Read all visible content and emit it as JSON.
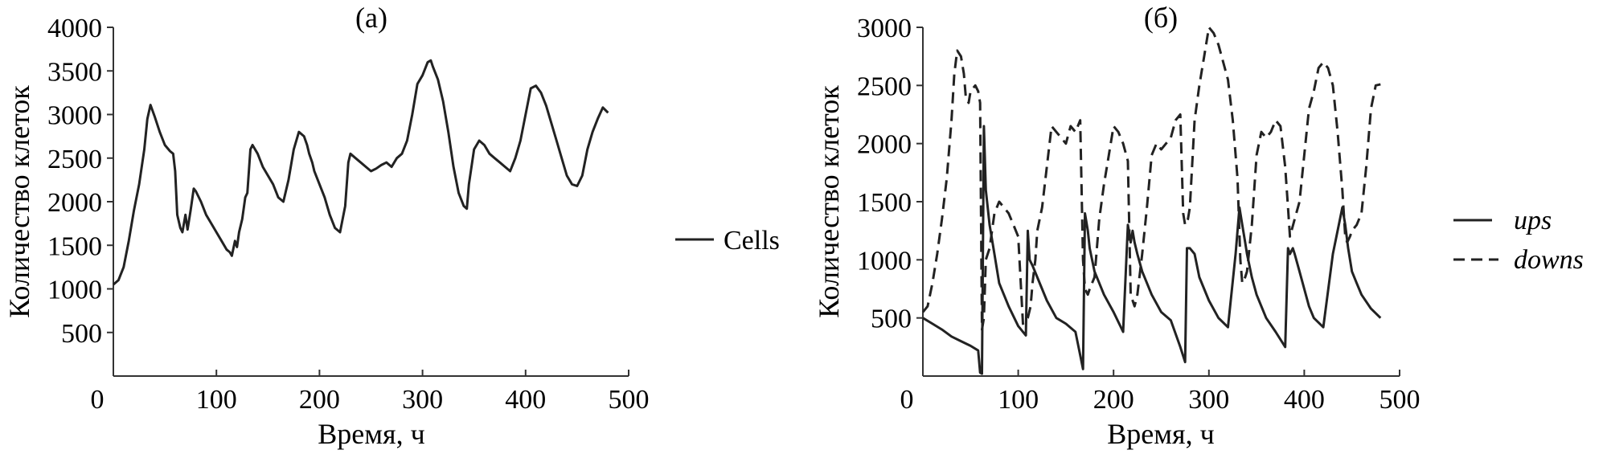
{
  "chart_data": [
    {
      "type": "line",
      "title": "(а)",
      "xlabel": "Время, ч",
      "ylabel": "Количество клеток",
      "xlim": [
        0,
        500
      ],
      "ylim": [
        0,
        4000
      ],
      "xticks": [
        "0",
        "100",
        "200",
        "300",
        "400",
        "500"
      ],
      "yticks": [
        "500",
        "1000",
        "1500",
        "2000",
        "2500",
        "3000",
        "3500",
        "4000"
      ],
      "legend_position": "right",
      "series": [
        {
          "name": "Cells",
          "style": "solid",
          "color": "#222222",
          "x": [
            0,
            5,
            10,
            15,
            20,
            25,
            30,
            33,
            36,
            40,
            45,
            50,
            55,
            58,
            60,
            62,
            65,
            67,
            70,
            72,
            75,
            78,
            80,
            85,
            90,
            95,
            100,
            105,
            110,
            113,
            115,
            118,
            120,
            122,
            125,
            128,
            130,
            133,
            135,
            140,
            145,
            150,
            155,
            160,
            165,
            170,
            175,
            180,
            185,
            188,
            190,
            193,
            195,
            200,
            205,
            210,
            215,
            220,
            225,
            228,
            230,
            235,
            240,
            245,
            250,
            255,
            260,
            265,
            270,
            275,
            280,
            285,
            290,
            295,
            300,
            305,
            308,
            310,
            315,
            320,
            325,
            330,
            335,
            340,
            343,
            345,
            350,
            355,
            360,
            365,
            370,
            375,
            380,
            385,
            390,
            395,
            400,
            405,
            410,
            415,
            420,
            425,
            430,
            435,
            440,
            445,
            450,
            455,
            460,
            465,
            470,
            475,
            480
          ],
          "values": [
            1050,
            1100,
            1250,
            1550,
            1900,
            2200,
            2600,
            2950,
            3110,
            2980,
            2800,
            2650,
            2580,
            2550,
            2350,
            1850,
            1700,
            1650,
            1850,
            1680,
            1900,
            2150,
            2120,
            2000,
            1850,
            1750,
            1650,
            1550,
            1450,
            1420,
            1380,
            1550,
            1480,
            1650,
            1800,
            2050,
            2100,
            2600,
            2650,
            2550,
            2400,
            2300,
            2200,
            2050,
            2000,
            2250,
            2600,
            2800,
            2750,
            2650,
            2550,
            2450,
            2350,
            2200,
            2050,
            1850,
            1700,
            1650,
            1950,
            2450,
            2550,
            2500,
            2450,
            2400,
            2350,
            2380,
            2420,
            2450,
            2400,
            2500,
            2550,
            2700,
            3000,
            3350,
            3450,
            3600,
            3620,
            3550,
            3400,
            3150,
            2800,
            2400,
            2100,
            1950,
            1920,
            2200,
            2600,
            2700,
            2650,
            2550,
            2500,
            2450,
            2400,
            2350,
            2500,
            2700,
            3000,
            3300,
            3330,
            3250,
            3100,
            2900,
            2700,
            2500,
            2300,
            2200,
            2180,
            2300,
            2600,
            2800,
            2950,
            3080,
            3020
          ]
        }
      ]
    },
    {
      "type": "line",
      "title": "(б)",
      "xlabel": "Время, ч",
      "ylabel": "Количество клеток",
      "xlim": [
        0,
        500
      ],
      "ylim": [
        0,
        3000
      ],
      "xticks": [
        "0",
        "100",
        "200",
        "300",
        "400",
        "500"
      ],
      "yticks": [
        "500",
        "1000",
        "1500",
        "2000",
        "2500",
        "3000"
      ],
      "legend_position": "right",
      "series": [
        {
          "name": "ups",
          "style": "solid",
          "color": "#222222",
          "x": [
            0,
            10,
            20,
            30,
            40,
            50,
            58,
            60,
            62,
            64,
            66,
            70,
            75,
            80,
            90,
            100,
            108,
            110,
            112,
            115,
            120,
            130,
            140,
            150,
            160,
            165,
            168,
            170,
            173,
            175,
            180,
            190,
            200,
            210,
            215,
            218,
            220,
            222,
            225,
            230,
            240,
            250,
            260,
            270,
            275,
            277,
            280,
            285,
            290,
            300,
            310,
            320,
            328,
            330,
            332,
            335,
            338,
            340,
            345,
            350,
            360,
            370,
            380,
            383,
            385,
            388,
            390,
            395,
            400,
            405,
            410,
            420,
            430,
            440,
            443,
            446,
            450,
            455,
            460,
            470,
            480
          ],
          "values": [
            500,
            450,
            400,
            340,
            300,
            260,
            220,
            30,
            20,
            2150,
            1600,
            1300,
            1050,
            800,
            600,
            430,
            350,
            1250,
            1000,
            950,
            850,
            650,
            500,
            450,
            380,
            180,
            60,
            1400,
            1250,
            1100,
            900,
            700,
            550,
            380,
            1300,
            1150,
            1250,
            1150,
            1050,
            900,
            700,
            550,
            480,
            250,
            120,
            1100,
            1100,
            1050,
            850,
            650,
            500,
            420,
            1050,
            1250,
            1450,
            1300,
            1150,
            1050,
            850,
            700,
            500,
            380,
            250,
            1100,
            1050,
            1100,
            1050,
            900,
            750,
            600,
            500,
            420,
            1050,
            1450,
            1300,
            1100,
            900,
            800,
            700,
            580,
            500
          ]
        },
        {
          "name": "downs",
          "style": "dashed",
          "color": "#222222",
          "x": [
            0,
            5,
            10,
            15,
            20,
            25,
            30,
            33,
            36,
            40,
            43,
            45,
            48,
            50,
            55,
            58,
            60,
            62,
            64,
            66,
            70,
            75,
            80,
            85,
            90,
            95,
            100,
            105,
            110,
            113,
            115,
            118,
            120,
            125,
            130,
            135,
            140,
            145,
            150,
            155,
            160,
            165,
            168,
            170,
            173,
            175,
            180,
            185,
            190,
            195,
            200,
            205,
            210,
            215,
            218,
            220,
            222,
            225,
            230,
            235,
            240,
            245,
            250,
            255,
            260,
            265,
            270,
            273,
            275,
            278,
            280,
            285,
            290,
            295,
            300,
            305,
            310,
            315,
            320,
            325,
            330,
            333,
            335,
            338,
            340,
            345,
            350,
            355,
            360,
            365,
            370,
            375,
            380,
            383,
            385,
            390,
            395,
            400,
            405,
            410,
            415,
            420,
            425,
            430,
            435,
            440,
            443,
            445,
            448,
            450,
            455,
            460,
            465,
            470,
            475,
            480
          ],
          "values": [
            550,
            600,
            800,
            1050,
            1350,
            1700,
            2200,
            2600,
            2800,
            2750,
            2600,
            2400,
            2350,
            2450,
            2500,
            2450,
            2350,
            400,
            500,
            1000,
            1100,
            1400,
            1500,
            1450,
            1400,
            1300,
            1200,
            450,
            500,
            600,
            800,
            1000,
            1250,
            1450,
            1800,
            2150,
            2100,
            2050,
            2000,
            2150,
            2100,
            2200,
            1000,
            750,
            700,
            750,
            850,
            1350,
            1650,
            1900,
            2150,
            2100,
            2000,
            1850,
            700,
            650,
            600,
            700,
            1050,
            1450,
            1900,
            2000,
            1950,
            2000,
            2050,
            2200,
            2250,
            1400,
            1300,
            1350,
            1450,
            2200,
            2500,
            2750,
            3000,
            2950,
            2850,
            2700,
            2550,
            2200,
            1700,
            1000,
            800,
            850,
            900,
            1300,
            1900,
            2100,
            2050,
            2100,
            2200,
            2150,
            1800,
            1450,
            1200,
            1350,
            1500,
            1900,
            2300,
            2450,
            2650,
            2700,
            2650,
            2500,
            2100,
            1600,
            1200,
            1150,
            1200,
            1250,
            1300,
            1400,
            1800,
            2300,
            2500,
            2510
          ]
        }
      ]
    }
  ]
}
